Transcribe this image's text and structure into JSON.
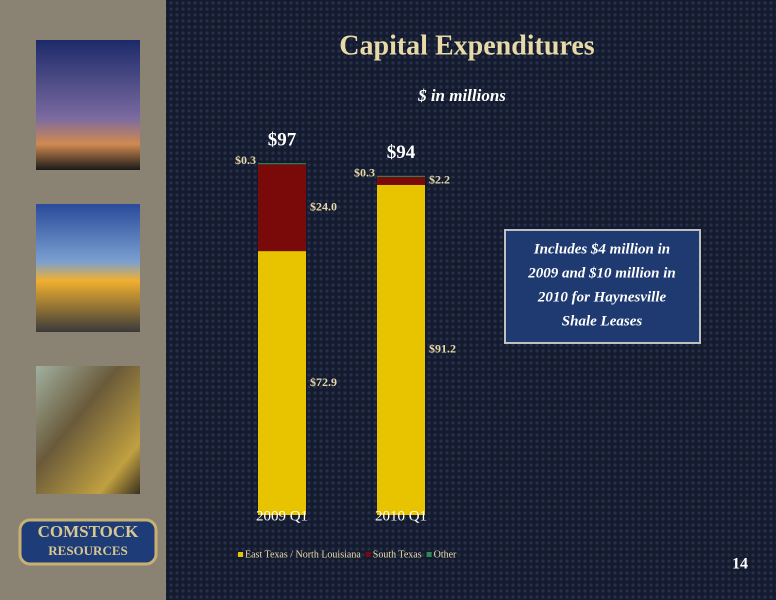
{
  "chart_data": {
    "type": "stacked-bar",
    "title": "Capital Expenditures",
    "subtitle": "$ in millions",
    "categories": [
      "2009 Q1",
      "2010 Q1"
    ],
    "series": [
      {
        "name": "East Texas / North Louisiana",
        "color": "#e8c400",
        "values": [
          72.9,
          91.2
        ],
        "value_labels": [
          "$72.9",
          "$91.2"
        ]
      },
      {
        "name": "South Texas",
        "color": "#7a0a0a",
        "values": [
          24.0,
          2.2
        ],
        "value_labels": [
          "$24.0",
          "$2.2"
        ]
      },
      {
        "name": "Other",
        "color": "#2e8b57",
        "values": [
          0.3,
          0.3
        ],
        "value_labels": [
          "$0.3",
          "$0.3"
        ]
      }
    ],
    "totals": {
      "values": [
        97,
        94
      ],
      "value_labels": [
        "$97",
        "$94"
      ]
    },
    "legend": "bottom"
  },
  "note": {
    "lines": [
      "Includes $4 million in",
      "2009 and $10 million in",
      "2010 for Haynesville",
      "Shale Leases"
    ]
  },
  "logo": {
    "lines": [
      "COMSTOCK",
      "RESOURCES"
    ]
  },
  "page_number": "14"
}
